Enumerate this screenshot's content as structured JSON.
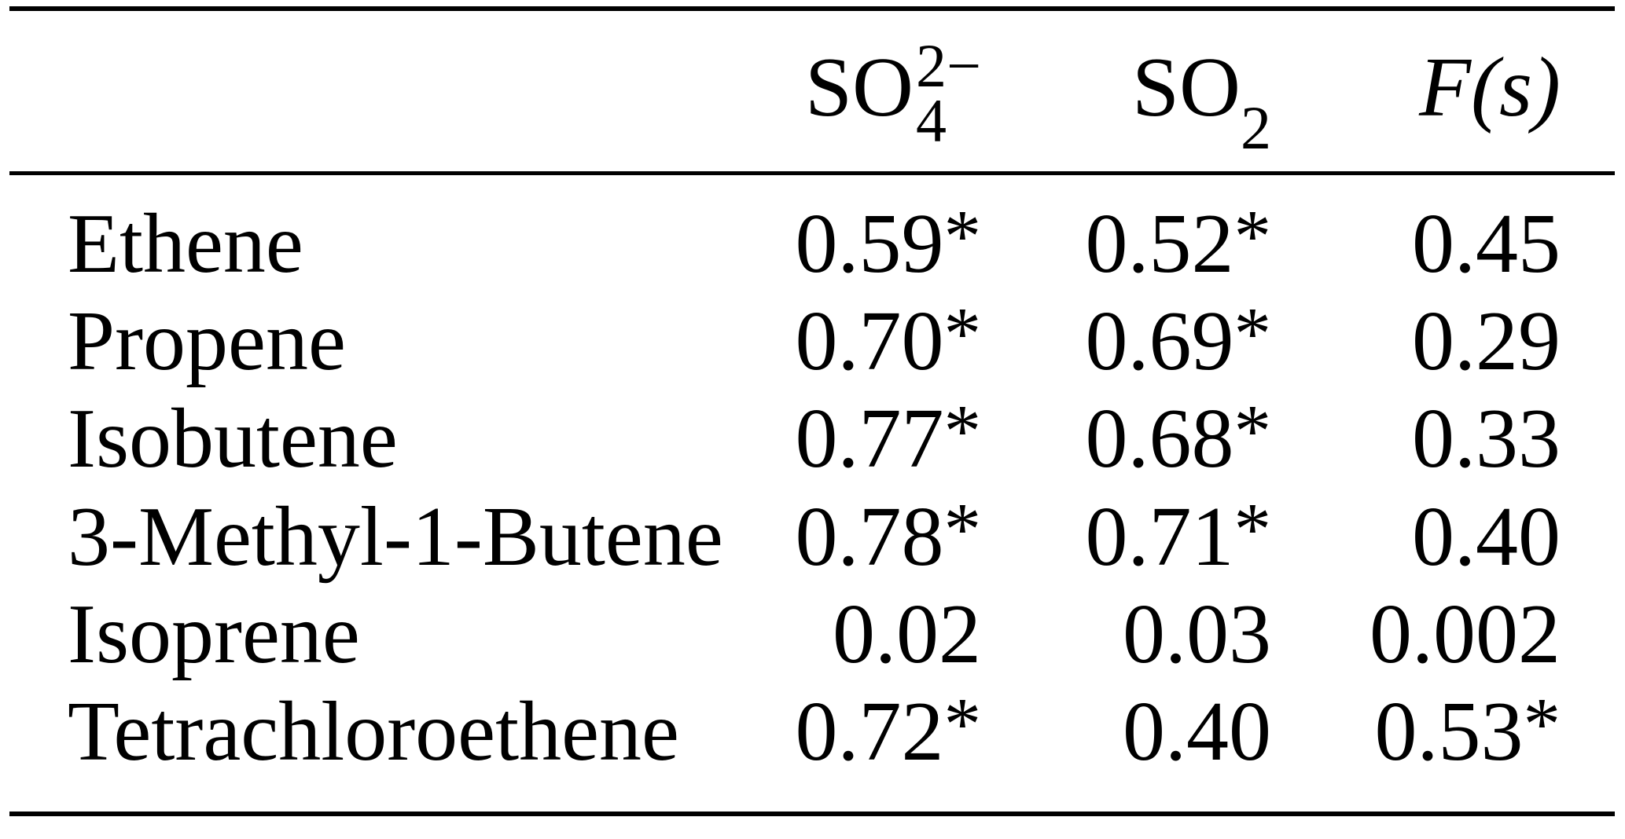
{
  "header": {
    "sulfate": {
      "base": "SO",
      "sup": "2−",
      "sub": "4"
    },
    "so2": {
      "base": "SO",
      "sub": "2"
    },
    "fs": "F(s)"
  },
  "rows": [
    {
      "label": "Ethene",
      "so4": "0.59*",
      "so2": "0.52*",
      "fs": "0.45"
    },
    {
      "label": "Propene",
      "so4": "0.70*",
      "so2": "0.69*",
      "fs": "0.29"
    },
    {
      "label": "Isobutene",
      "so4": "0.77*",
      "so2": "0.68*",
      "fs": "0.33"
    },
    {
      "label": "3-Methyl-1-Butene",
      "so4": "0.78*",
      "so2": "0.71*",
      "fs": "0.40"
    },
    {
      "label": "Isoprene",
      "so4": "0.02",
      "so2": "0.03",
      "fs": "0.002"
    },
    {
      "label": "Tetrachloroethene",
      "so4": "0.72*",
      "so2": "0.40",
      "fs": "0.53*"
    }
  ],
  "colors": {
    "text": "#000000",
    "background": "#ffffff",
    "rule": "#000000"
  }
}
